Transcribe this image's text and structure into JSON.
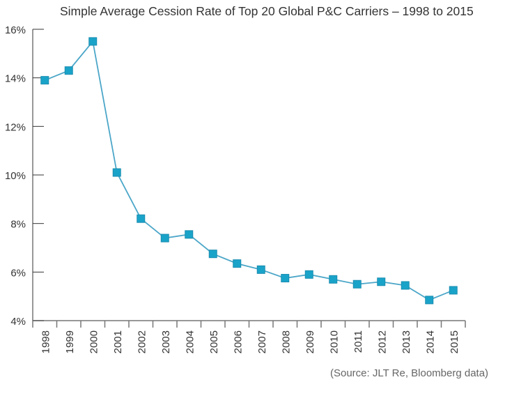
{
  "chart_data": {
    "type": "line",
    "title": "Simple Average Cession Rate of Top 20 Global P&C Carriers – 1998 to 2015",
    "xlabel": "",
    "ylabel": "",
    "categories": [
      "1998",
      "1999",
      "2000",
      "2001",
      "2002",
      "2003",
      "2004",
      "2005",
      "2006",
      "2007",
      "2008",
      "2009",
      "2010",
      "2011",
      "2012",
      "2013",
      "2014",
      "2015"
    ],
    "series": [
      {
        "name": "Cession Rate",
        "values": [
          13.9,
          14.3,
          15.5,
          10.1,
          8.2,
          7.4,
          7.55,
          6.75,
          6.35,
          6.1,
          5.75,
          5.9,
          5.7,
          5.5,
          5.6,
          5.45,
          4.85,
          5.25
        ]
      }
    ],
    "ylim": [
      4,
      16
    ],
    "yticks": [
      4,
      6,
      8,
      10,
      12,
      14,
      16
    ],
    "ytick_labels": [
      "4%",
      "6%",
      "8%",
      "10%",
      "12%",
      "14%",
      "16%"
    ],
    "grid": false,
    "legend": "none",
    "colors": {
      "line": "#4ba6c8",
      "marker": "#1aa3c9",
      "marker_border": "#1b8db0",
      "axis": "#777777"
    },
    "annotation": "(Source: JLT Re, Bloomberg data)"
  }
}
